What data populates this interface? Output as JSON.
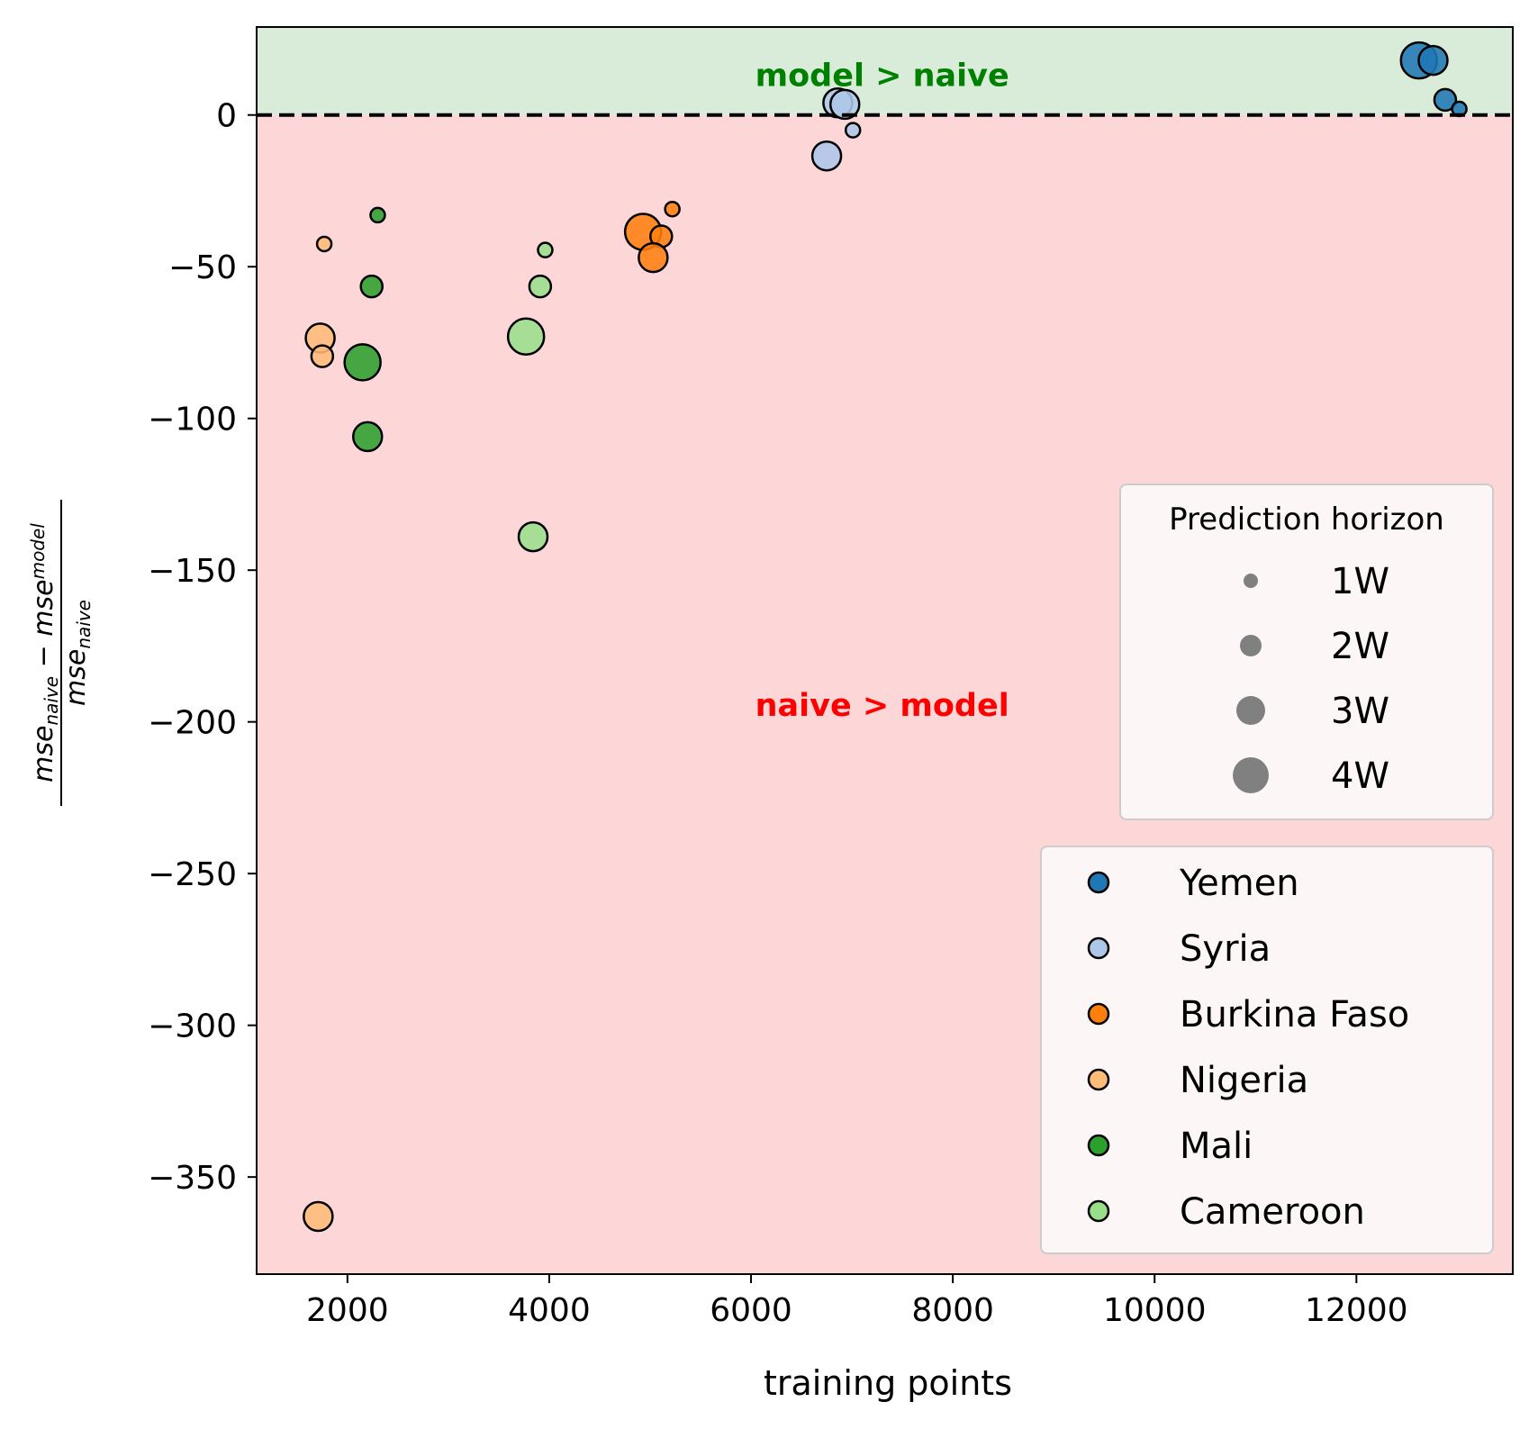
{
  "chart_data": {
    "type": "scatter",
    "title": "",
    "xlabel": "training points",
    "ylabel": {
      "numerator": [
        "mse",
        "naive",
        " − ",
        "mse",
        "model"
      ],
      "denominator": [
        "mse",
        "naive"
      ]
    },
    "xlim": [
      1100,
      13550
    ],
    "ylim": [
      -382,
      29
    ],
    "xticks": [
      2000,
      4000,
      6000,
      8000,
      10000,
      12000
    ],
    "xtick_labels": [
      "2000",
      "4000",
      "6000",
      "8000",
      "10000",
      "12000"
    ],
    "yticks": [
      0,
      -50,
      -100,
      -150,
      -200,
      -250,
      -300,
      -350
    ],
    "ytick_labels": [
      "0",
      "−50",
      "−100",
      "−150",
      "−200",
      "−250",
      "−300",
      "−350"
    ],
    "reference_line": {
      "y": 0,
      "style": "dashed"
    },
    "regions": [
      {
        "label": "model > naive",
        "from": 0,
        "to": 29,
        "color": "#d9ecd9",
        "text_color": "#008000",
        "label_x": 7300,
        "label_y": 9.5
      },
      {
        "label": "naive > model",
        "from": -382,
        "to": 0,
        "color": "#fdd6d8",
        "text_color": "#ff0000",
        "label_x": 7300,
        "label_y": -198
      }
    ],
    "grid": false,
    "size_legend": {
      "title": "Prediction horizon",
      "placement": "right",
      "entries": [
        {
          "label": "1W",
          "horizon": 1
        },
        {
          "label": "2W",
          "horizon": 2
        },
        {
          "label": "3W",
          "horizon": 3
        },
        {
          "label": "4W",
          "horizon": 4
        }
      ]
    },
    "color_legend": {
      "placement": "lower right",
      "entries": [
        "Yemen",
        "Syria",
        "Burkina Faso",
        "Nigeria",
        "Mali",
        "Cameroon"
      ]
    },
    "series": [
      {
        "name": "Yemen",
        "color": "#1f77b4",
        "points": [
          {
            "x": 12620,
            "y": 18,
            "horizon": 4
          },
          {
            "x": 12760,
            "y": 18,
            "horizon": 3
          },
          {
            "x": 12880,
            "y": 5,
            "horizon": 2
          },
          {
            "x": 13020,
            "y": 2,
            "horizon": 1
          }
        ]
      },
      {
        "name": "Syria",
        "color": "#aec7e8",
        "points": [
          {
            "x": 6860,
            "y": 4,
            "horizon": 3
          },
          {
            "x": 6930,
            "y": 3.5,
            "horizon": 3
          },
          {
            "x": 6750,
            "y": -13.5,
            "horizon": 3
          },
          {
            "x": 7010,
            "y": -5,
            "horizon": 1
          }
        ]
      },
      {
        "name": "Burkina Faso",
        "color": "#ff7f0e",
        "points": [
          {
            "x": 4930,
            "y": -38.5,
            "horizon": 4
          },
          {
            "x": 5110,
            "y": -40,
            "horizon": 2
          },
          {
            "x": 5030,
            "y": -47,
            "horizon": 3
          },
          {
            "x": 5220,
            "y": -31,
            "horizon": 1
          }
        ]
      },
      {
        "name": "Nigeria",
        "color": "#ffbb78",
        "points": [
          {
            "x": 1770,
            "y": -42.5,
            "horizon": 1
          },
          {
            "x": 1730,
            "y": -73.5,
            "horizon": 3
          },
          {
            "x": 1750,
            "y": -79.5,
            "horizon": 2
          },
          {
            "x": 1710,
            "y": -363,
            "horizon": 3
          }
        ]
      },
      {
        "name": "Mali",
        "color": "#2ca02c",
        "points": [
          {
            "x": 2300,
            "y": -33,
            "horizon": 1
          },
          {
            "x": 2240,
            "y": -56.5,
            "horizon": 2
          },
          {
            "x": 2150,
            "y": -81.5,
            "horizon": 4
          },
          {
            "x": 2200,
            "y": -106,
            "horizon": 3
          }
        ]
      },
      {
        "name": "Cameroon",
        "color": "#98df8a",
        "points": [
          {
            "x": 3960,
            "y": -44.5,
            "horizon": 1
          },
          {
            "x": 3910,
            "y": -56.5,
            "horizon": 2
          },
          {
            "x": 3770,
            "y": -73,
            "horizon": 4
          },
          {
            "x": 3840,
            "y": -139,
            "horizon": 3
          }
        ]
      }
    ]
  }
}
